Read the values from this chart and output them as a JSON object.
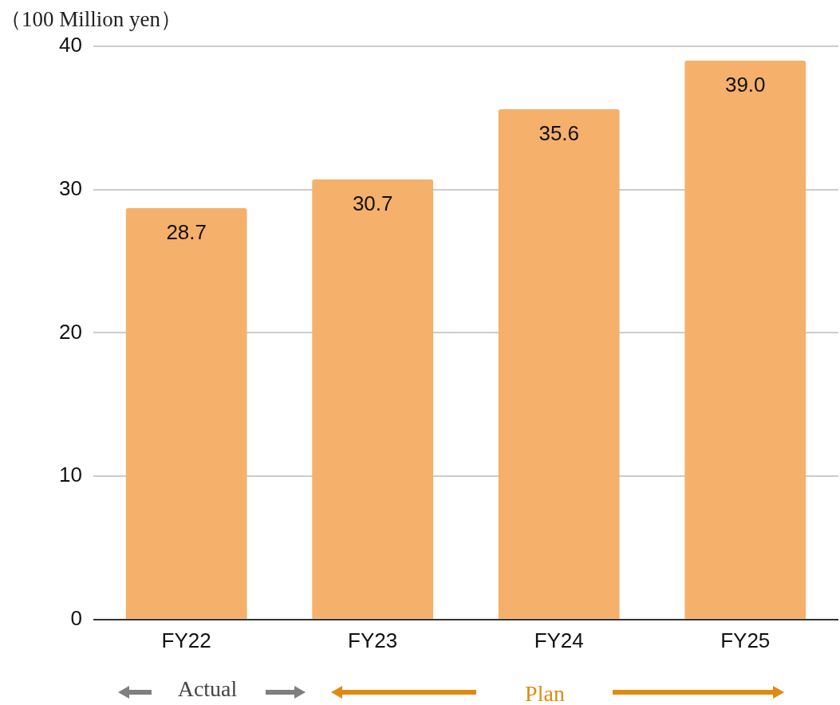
{
  "chart_data": {
    "type": "bar",
    "ylabel": "（100 Million yen）",
    "categories": [
      "FY22",
      "FY23",
      "FY24",
      "FY25"
    ],
    "values": [
      28.7,
      30.7,
      35.6,
      39.0
    ],
    "color": "#f5b06b",
    "ylim": [
      0,
      40
    ],
    "yticks": [
      0,
      10,
      20,
      30,
      40
    ],
    "grid": "y",
    "legend": false,
    "value_labels": [
      "28.7",
      "30.7",
      "35.6",
      "39.0"
    ],
    "annotations": [
      "Actual",
      "Plan"
    ]
  }
}
